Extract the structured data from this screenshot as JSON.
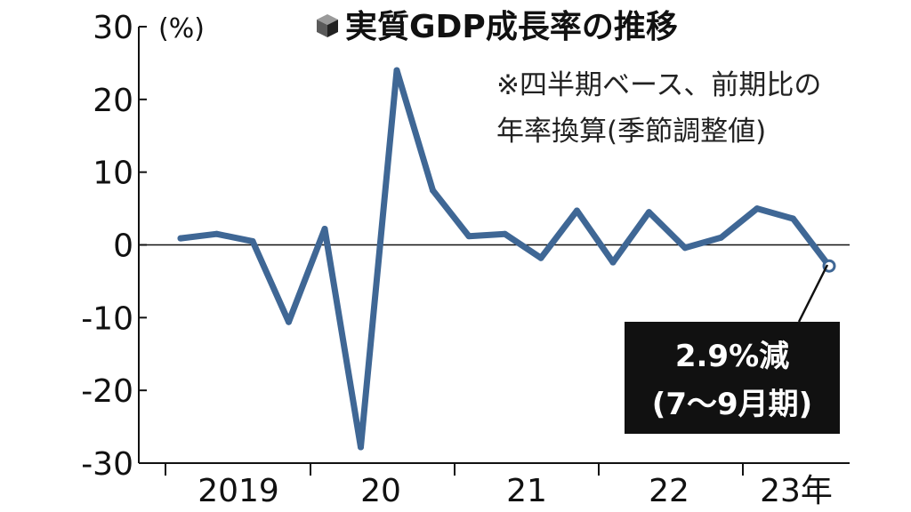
{
  "chart_data": {
    "type": "line",
    "title": "実質GDP成長率の推移",
    "unit_label": "(%)",
    "note_lines": [
      "※四半期ベース、前期比の",
      "年率換算(季節調整値)"
    ],
    "ylim": [
      -30,
      30
    ],
    "y_ticks": [
      30,
      20,
      10,
      0,
      -10,
      -20,
      -30
    ],
    "year_labels": [
      "2019",
      "20",
      "21",
      "22",
      "23年"
    ],
    "x": [
      "2019Q1",
      "2019Q2",
      "2019Q3",
      "2019Q4",
      "2020Q1",
      "2020Q2",
      "2020Q3",
      "2020Q4",
      "2021Q1",
      "2021Q2",
      "2021Q3",
      "2021Q4",
      "2022Q1",
      "2022Q2",
      "2022Q3",
      "2022Q4",
      "2023Q1",
      "2023Q2",
      "2023Q3"
    ],
    "values": [
      0.9,
      1.5,
      0.5,
      -10.6,
      2.2,
      -27.8,
      24.0,
      7.5,
      1.2,
      1.5,
      -1.8,
      4.7,
      -2.4,
      4.5,
      -0.4,
      1.0,
      5.0,
      3.6,
      -2.9
    ],
    "annotation": {
      "lines": [
        "2.9%減",
        "(7〜9月期)"
      ]
    },
    "colors": {
      "line": "#3f6795",
      "axis": "#111111",
      "callout_bg": "#111111"
    }
  }
}
